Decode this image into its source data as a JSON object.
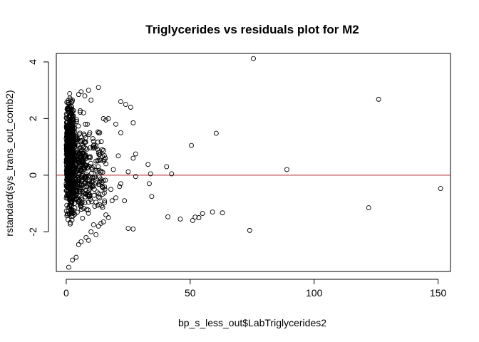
{
  "chart_data": {
    "type": "scatter",
    "title": "Triglycerides vs residuals plot for M2",
    "xlabel": "bp_s_less_out$LabTriglycerides2",
    "ylabel": "rstandard(sys_trans_out_comb2)",
    "xlim": [
      -4,
      155
    ],
    "ylim": [
      -3.4,
      4.3
    ],
    "x_ticks": [
      0,
      50,
      100,
      150
    ],
    "y_ticks": [
      -2,
      0,
      2,
      4
    ],
    "x_tick_labels": [
      "0",
      "50",
      "100",
      "150"
    ],
    "y_tick_labels": [
      "-2",
      "0",
      "2",
      "4"
    ],
    "grid": false,
    "legend": "none",
    "marker": "open-circle",
    "reference_line": {
      "y": 0,
      "color": "#b22222"
    },
    "series": [
      {
        "values_xy": [
          [
            75.5,
            4.12
          ],
          [
            126,
            2.68
          ],
          [
            60.5,
            1.48
          ],
          [
            50.5,
            1.05
          ],
          [
            89,
            0.2
          ],
          [
            151,
            -0.47
          ],
          [
            122,
            -1.15
          ],
          [
            74,
            -1.95
          ],
          [
            59,
            -1.3
          ],
          [
            63,
            -1.33
          ],
          [
            55,
            -1.35
          ],
          [
            52,
            -1.48
          ],
          [
            51,
            -1.6
          ],
          [
            53.5,
            -1.5
          ],
          [
            41,
            -1.47
          ],
          [
            46,
            -1.55
          ],
          [
            40.5,
            0.3
          ],
          [
            42.5,
            0.05
          ],
          [
            34,
            0.05
          ],
          [
            33,
            0.38
          ],
          [
            34.5,
            -0.75
          ],
          [
            33.5,
            -0.3
          ],
          [
            28,
            -0.05
          ],
          [
            28,
            0.75
          ],
          [
            27,
            0.6
          ],
          [
            25,
            0.12
          ],
          [
            27,
            1.85
          ],
          [
            26,
            2.4
          ],
          [
            24,
            2.5
          ],
          [
            22,
            2.6
          ],
          [
            13,
            3.1
          ],
          [
            9,
            3.0
          ],
          [
            6,
            2.95
          ],
          [
            5,
            2.85
          ],
          [
            7.5,
            2.8
          ],
          [
            10,
            2.65
          ],
          [
            25,
            -1.88
          ],
          [
            27,
            -1.9
          ],
          [
            21,
            0.68
          ],
          [
            22,
            1.5
          ],
          [
            20,
            1.8
          ],
          [
            17,
            2.0
          ],
          [
            16,
            1.95
          ],
          [
            15,
            2.0
          ],
          [
            18,
            -0.5
          ],
          [
            20,
            -0.8
          ],
          [
            22,
            -0.3
          ],
          [
            23.5,
            -0.9
          ],
          [
            21.5,
            -0.4
          ],
          [
            19,
            0.2
          ],
          [
            18.5,
            -0.9
          ],
          [
            17,
            -1.5
          ],
          [
            16,
            -1.4
          ],
          [
            15,
            -1.65
          ],
          [
            14,
            -1.7
          ],
          [
            13,
            -1.8
          ],
          [
            12,
            -2.1
          ],
          [
            11,
            -1.75
          ],
          [
            10,
            -2.0
          ],
          [
            9,
            -2.3
          ],
          [
            8,
            -2.2
          ],
          [
            6,
            -2.35
          ],
          [
            5,
            -2.45
          ],
          [
            4,
            -2.9
          ],
          [
            2.5,
            -3.0
          ],
          [
            1,
            -3.25
          ],
          [
            12,
            0.5
          ],
          [
            11,
            1.2
          ],
          [
            13,
            0.8
          ],
          [
            14,
            0.1
          ],
          [
            15,
            -0.2
          ],
          [
            16,
            0.4
          ],
          [
            12.5,
            -0.6
          ],
          [
            11.5,
            -1.1
          ],
          [
            10.5,
            0.2
          ],
          [
            9.5,
            1.5
          ],
          [
            8.5,
            1.8
          ],
          [
            7,
            2.2
          ],
          [
            13.5,
            1.5
          ],
          [
            14.5,
            0.9
          ]
        ]
      }
    ],
    "dense_cluster_note": "",
    "cluster_bands": [
      {
        "xmin": 0,
        "xmax": 3,
        "ymin": -2.1,
        "ymax": 3.25,
        "n": 700
      },
      {
        "xmin": 3,
        "xmax": 8,
        "ymin": -2.3,
        "ymax": 2.6,
        "n": 220
      },
      {
        "xmin": 8,
        "xmax": 16,
        "ymin": -1.9,
        "ymax": 2.0,
        "n": 110
      }
    ]
  }
}
